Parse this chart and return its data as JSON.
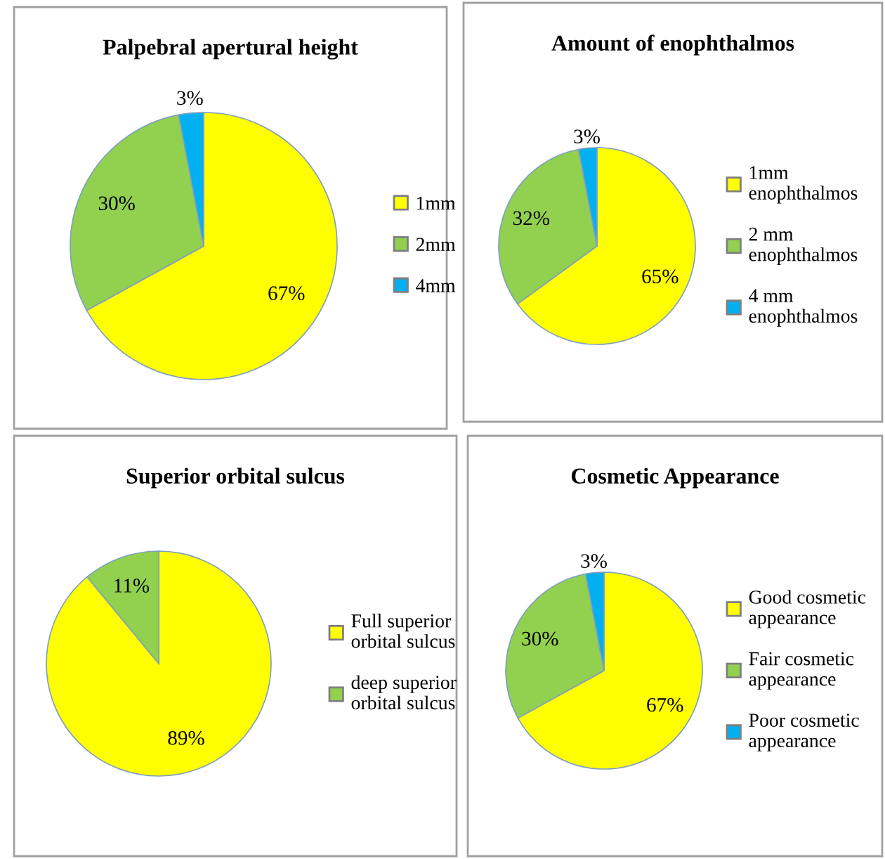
{
  "chart_data": [
    {
      "type": "pie",
      "title": "Palpebral apertural height",
      "categories": [
        "1mm",
        "2mm",
        "4mm"
      ],
      "values": [
        67,
        30,
        3
      ],
      "value_labels": [
        "67%",
        "30%",
        "3%"
      ],
      "colors": [
        "#ffff00",
        "#92d050",
        "#00b0f0"
      ],
      "legend": "right"
    },
    {
      "type": "pie",
      "title": "Amount of enophthalmos",
      "categories": [
        "1mm enophthalmos",
        "2 mm enophthalmos",
        "4 mm enophthalmos"
      ],
      "values": [
        65,
        32,
        3
      ],
      "value_labels": [
        "65%",
        "32%",
        "3%"
      ],
      "colors": [
        "#ffff00",
        "#92d050",
        "#00b0f0"
      ],
      "legend": "right"
    },
    {
      "type": "pie",
      "title": "Superior orbital sulcus",
      "categories": [
        "Full superior orbital sulcus",
        "deep superior orbital sulcus"
      ],
      "values": [
        89,
        11
      ],
      "value_labels": [
        "89%",
        "11%"
      ],
      "colors": [
        "#ffff00",
        "#92d050"
      ],
      "legend": "right"
    },
    {
      "type": "pie",
      "title": "Cosmetic Appearance",
      "categories": [
        "Good cosmetic appearance",
        "Fair cosmetic appearance",
        "Poor cosmetic appearance"
      ],
      "values": [
        67,
        30,
        3
      ],
      "value_labels": [
        "67%",
        "30%",
        "3%"
      ],
      "colors": [
        "#ffff00",
        "#92d050",
        "#00b0f0"
      ],
      "legend": "right"
    }
  ]
}
